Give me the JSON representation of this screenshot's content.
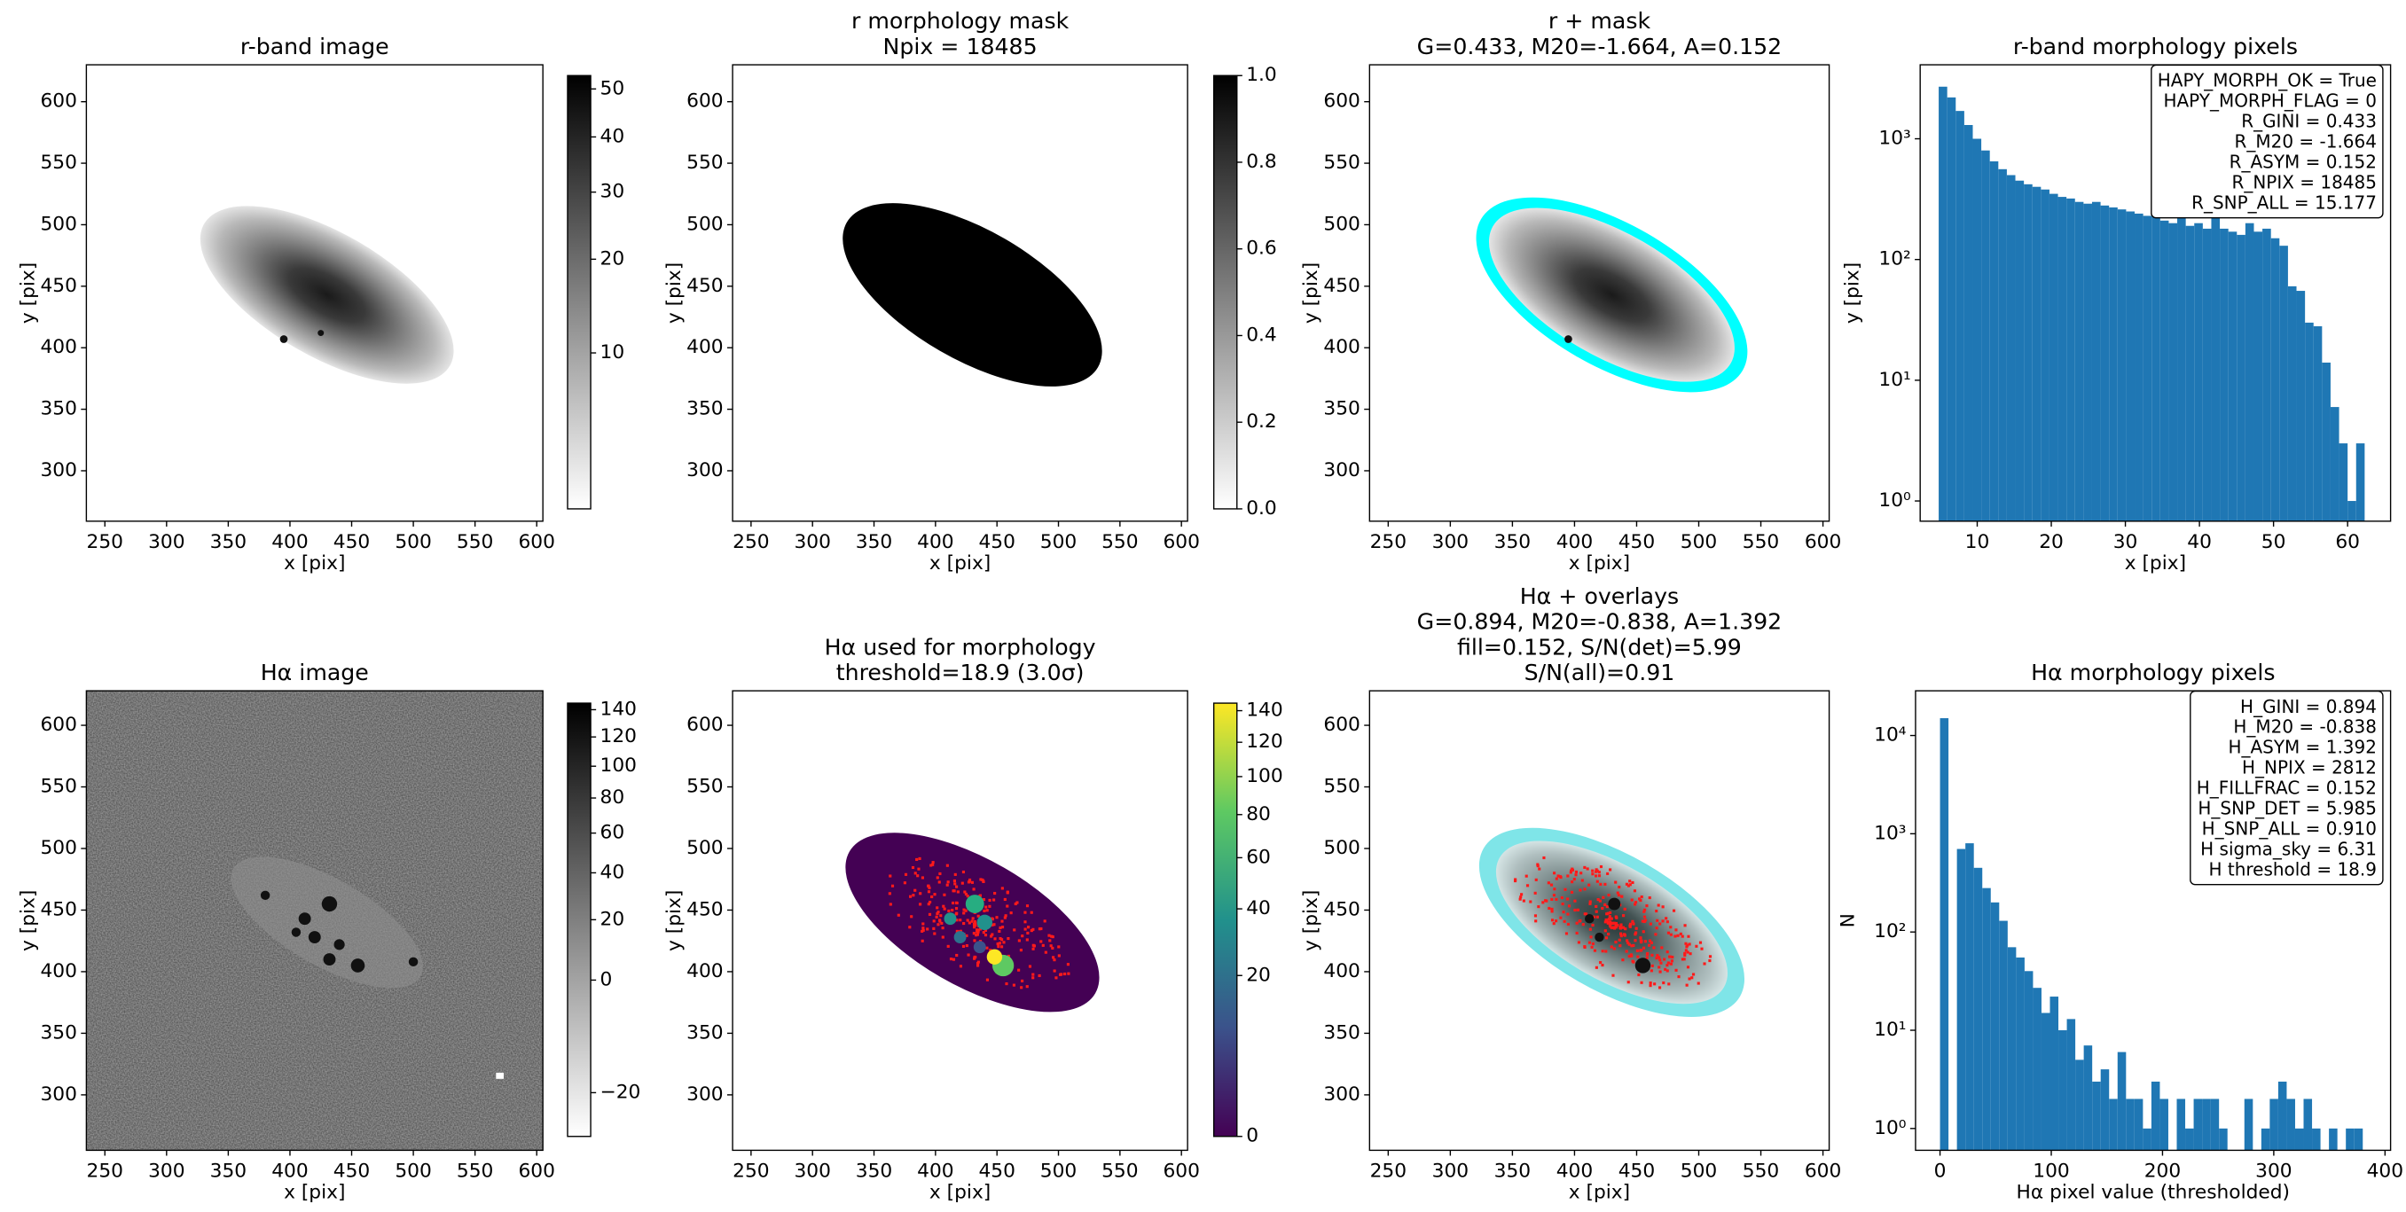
{
  "chart_data": [
    {
      "type": "image",
      "title": [
        "r-band image"
      ],
      "xlabel": "x [pix]",
      "ylabel": "y [pix]",
      "xlim": [
        235,
        605
      ],
      "ylim": [
        259,
        630
      ],
      "xticks": [
        250,
        300,
        350,
        400,
        450,
        500,
        550,
        600
      ],
      "yticks": [
        300,
        350,
        400,
        450,
        500,
        550,
        600
      ],
      "colorbar": {
        "cmap": "gray_r",
        "scale": "sqrt",
        "lim": [
          3.6,
          53
        ],
        "ticks": [
          10,
          20,
          30,
          40,
          50
        ]
      }
    },
    {
      "type": "image",
      "title": [
        "r morphology mask",
        "Npix = 18485"
      ],
      "xlabel": "x [pix]",
      "ylabel": "y [pix]",
      "xlim": [
        235,
        605
      ],
      "ylim": [
        259,
        630
      ],
      "xticks": [
        250,
        300,
        350,
        400,
        450,
        500,
        550,
        600
      ],
      "yticks": [
        300,
        350,
        400,
        450,
        500,
        550,
        600
      ],
      "colorbar": {
        "cmap": "gray_r",
        "scale": "linear",
        "lim": [
          0,
          1
        ],
        "ticks": [
          {
            "value": 0,
            "label": "0.0"
          },
          {
            "value": 0.2,
            "label": "0.2"
          },
          {
            "value": 0.4,
            "label": "0.4"
          },
          {
            "value": 0.6,
            "label": "0.6"
          },
          {
            "value": 0.8,
            "label": "0.8"
          },
          {
            "value": 1,
            "label": "1.0"
          }
        ]
      }
    },
    {
      "type": "image",
      "title": [
        "r + mask",
        "G=0.433, M20=-1.664, A=0.152"
      ],
      "xlabel": "x [pix]",
      "ylabel": "y [pix]",
      "xlim": [
        235,
        605
      ],
      "ylim": [
        259,
        630
      ],
      "xticks": [
        250,
        300,
        350,
        400,
        450,
        500,
        550,
        600
      ],
      "yticks": [
        300,
        350,
        400,
        450,
        500,
        550,
        600
      ]
    },
    {
      "type": "histogram",
      "title": [
        "r-band morphology pixels"
      ],
      "xlabel": "x [pix]",
      "ylabel": "y [pix]",
      "color": "#1f77b4",
      "log_y": true,
      "xlim": [
        2.3,
        65.8
      ],
      "ylim": [
        0.68,
        4100
      ],
      "xticks": [
        10,
        20,
        30,
        40,
        50,
        60
      ],
      "yticks": [
        {
          "value": 1,
          "label": "10⁰"
        },
        {
          "value": 10,
          "label": "10¹"
        },
        {
          "value": 100,
          "label": "10²"
        },
        {
          "value": 1000,
          "label": "10³"
        }
      ],
      "bins": [
        4.8,
        5.95,
        7.1,
        8.25,
        9.4,
        10.55,
        11.7,
        12.85,
        14,
        15.15,
        16.3,
        17.45,
        18.6,
        19.75,
        20.9,
        22.05,
        23.2,
        24.35,
        25.5,
        26.65,
        27.8,
        28.95,
        30.1,
        31.25,
        32.4,
        33.55,
        34.7,
        35.85,
        37,
        38.15,
        39.3,
        40.45,
        41.6,
        42.75,
        43.9,
        45.05,
        46.2,
        47.35,
        48.5,
        49.65,
        50.8,
        51.95,
        53.1,
        54.25,
        55.4,
        56.55,
        57.7,
        58.85,
        60,
        61.15,
        62.3
      ],
      "values": [
        2700,
        2200,
        1700,
        1300,
        1000,
        800,
        650,
        560,
        500,
        450,
        420,
        400,
        380,
        350,
        330,
        320,
        300,
        290,
        300,
        280,
        270,
        260,
        250,
        240,
        230,
        260,
        210,
        200,
        220,
        190,
        200,
        180,
        250,
        180,
        170,
        160,
        200,
        170,
        180,
        150,
        130,
        60,
        55,
        30,
        28,
        14,
        6,
        3,
        1,
        3
      ],
      "annotation": [
        "HAPY_MORPH_OK = True",
        "HAPY_MORPH_FLAG = 0",
        "R_GINI = 0.433",
        "R_M20 = -1.664",
        "R_ASYM = 0.152",
        "R_NPIX = 18485",
        "R_SNP_ALL = 15.177"
      ],
      "annotation_corner": "upper right"
    },
    {
      "type": "image",
      "title": [
        "Hα image"
      ],
      "xlabel": "x [pix]",
      "ylabel": "y [pix]",
      "xlim": [
        235,
        605
      ],
      "ylim": [
        255,
        628
      ],
      "xticks": [
        250,
        300,
        350,
        400,
        450,
        500,
        550,
        600
      ],
      "yticks": [
        300,
        350,
        400,
        450,
        500,
        550,
        600
      ],
      "colorbar": {
        "cmap": "gray_r",
        "scale": "sqrt",
        "lim": [
          -21.7,
          145
        ],
        "ticks": [
          {
            "value": -20,
            "label": "−20"
          },
          0,
          20,
          40,
          60,
          80,
          100,
          120,
          140
        ]
      }
    },
    {
      "type": "image",
      "title": [
        "Hα used for morphology",
        "threshold=18.9 (3.0σ)"
      ],
      "xlabel": "x [pix]",
      "ylabel": "y [pix]",
      "xlim": [
        235,
        605
      ],
      "ylim": [
        255,
        628
      ],
      "xticks": [
        250,
        300,
        350,
        400,
        450,
        500,
        550,
        600
      ],
      "yticks": [
        300,
        350,
        400,
        450,
        500,
        550,
        600
      ],
      "colorbar": {
        "cmap": "viridis",
        "scale": "sqrt",
        "lim": [
          0,
          145
        ],
        "ticks": [
          0,
          20,
          40,
          60,
          80,
          100,
          120,
          140
        ]
      }
    },
    {
      "type": "image",
      "title": [
        "Hα + overlays",
        "G=0.894, M20=-0.838, A=1.392",
        "fill=0.152, S/N(det)=5.99",
        "S/N(all)=0.91"
      ],
      "xlabel": "x [pix]",
      "ylabel": "y [pix]",
      "xlim": [
        235,
        605
      ],
      "ylim": [
        255,
        628
      ],
      "xticks": [
        250,
        300,
        350,
        400,
        450,
        500,
        550,
        600
      ],
      "yticks": [
        300,
        350,
        400,
        450,
        500,
        550,
        600
      ]
    },
    {
      "type": "histogram",
      "title": [
        "Hα morphology pixels"
      ],
      "xlabel": "Hα pixel value (thresholded)",
      "ylabel": "N",
      "color": "#1f77b4",
      "log_y": true,
      "xlim": [
        -22,
        405
      ],
      "ylim": [
        0.6,
        28500
      ],
      "xticks": [
        0,
        100,
        200,
        300,
        400
      ],
      "yticks": [
        {
          "value": 1,
          "label": "10⁰"
        },
        {
          "value": 10,
          "label": "10¹"
        },
        {
          "value": 100,
          "label": "10²"
        },
        {
          "value": 1000,
          "label": "10³"
        },
        {
          "value": 10000,
          "label": "10⁴"
        }
      ],
      "bins": [
        0,
        7.6,
        15.2,
        22.8,
        30.4,
        38,
        45.6,
        53.2,
        60.8,
        68.4,
        76,
        83.6,
        91.2,
        98.8,
        106.4,
        114,
        121.6,
        129.2,
        136.8,
        144.4,
        152,
        159.6,
        167.2,
        174.8,
        182.4,
        190,
        197.6,
        205.2,
        212.8,
        220.4,
        228,
        235.6,
        243.2,
        250.8,
        258.4,
        266,
        273.6,
        281.2,
        288.8,
        296.4,
        304,
        311.6,
        319.2,
        326.8,
        334.4,
        342,
        349.6,
        357.2,
        364.8,
        372.4,
        380
      ],
      "values": [
        15000,
        0,
        700,
        800,
        450,
        280,
        200,
        130,
        70,
        55,
        40,
        27,
        15,
        22,
        10,
        13,
        5,
        7,
        3,
        4,
        2,
        6,
        2,
        2,
        1,
        3,
        2,
        0,
        2,
        1,
        2,
        2,
        2,
        1,
        0,
        0,
        2,
        0,
        1,
        2,
        3,
        2,
        1,
        2,
        1,
        0,
        1,
        0,
        1,
        1
      ],
      "annotation": [
        "H_GINI = 0.894",
        "H_M20 = -0.838",
        "H_ASYM = 1.392",
        "H_NPIX = 2812",
        "H_FILLFRAC = 0.152",
        "H_SNP_DET = 5.985",
        "H_SNP_ALL = 0.910",
        "H sigma_sky = 6.31",
        "H threshold = 18.9"
      ],
      "annotation_corner": "upper right"
    }
  ]
}
